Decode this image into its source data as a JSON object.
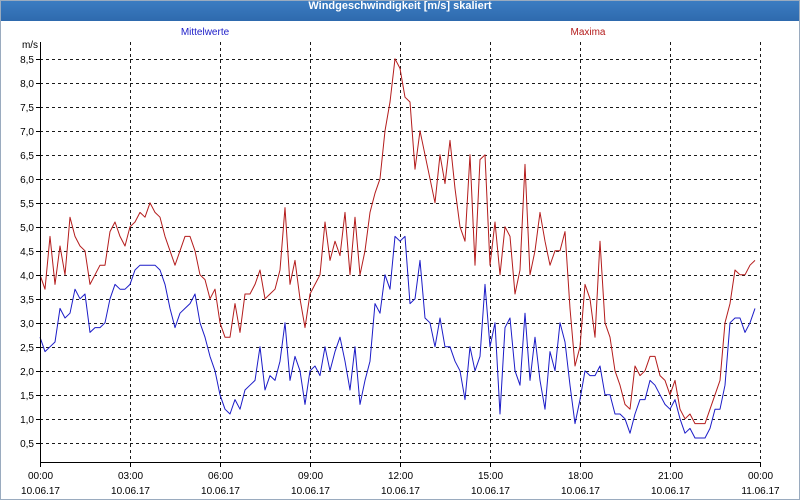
{
  "chart_data": {
    "type": "line",
    "title": "Windgeschwindigkeit [m/s] skaliert",
    "xlabel": "",
    "ylabel": "m/s",
    "xlim": [
      "10.06.17 00:00",
      "11.06.17 00:00"
    ],
    "ylim": [
      0.1,
      8.85
    ],
    "grid": true,
    "legend": "top",
    "y_ticks": [
      "0,5",
      "1,0",
      "1,5",
      "2,0",
      "2,5",
      "3,0",
      "3,5",
      "4,0",
      "4,5",
      "5,0",
      "5,5",
      "6,0",
      "6,5",
      "7,0",
      "7,5",
      "8,0",
      "8,5"
    ],
    "x_ticks": [
      {
        "time": "00:00",
        "date": "10.06.17"
      },
      {
        "time": "03:00",
        "date": "10.06.17"
      },
      {
        "time": "06:00",
        "date": "10.06.17"
      },
      {
        "time": "09:00",
        "date": "10.06.17"
      },
      {
        "time": "12:00",
        "date": "10.06.17"
      },
      {
        "time": "15:00",
        "date": "10.06.17"
      },
      {
        "time": "18:00",
        "date": "10.06.17"
      },
      {
        "time": "21:00",
        "date": "10.06.17"
      },
      {
        "time": "00:00",
        "date": "11.06.17"
      }
    ],
    "x": [
      "10.06.17 00:00",
      "10.06.17 00:10",
      "10.06.17 00:20",
      "10.06.17 00:30",
      "10.06.17 00:40",
      "10.06.17 00:50",
      "10.06.17 01:00",
      "10.06.17 01:10",
      "10.06.17 01:20",
      "10.06.17 01:30",
      "10.06.17 01:40",
      "10.06.17 01:50",
      "10.06.17 02:00",
      "10.06.17 02:10",
      "10.06.17 02:20",
      "10.06.17 02:30",
      "10.06.17 02:40",
      "10.06.17 02:50",
      "10.06.17 03:00",
      "10.06.17 03:10",
      "10.06.17 03:20",
      "10.06.17 03:30",
      "10.06.17 03:40",
      "10.06.17 03:50",
      "10.06.17 04:00",
      "10.06.17 04:10",
      "10.06.17 04:20",
      "10.06.17 04:30",
      "10.06.17 04:40",
      "10.06.17 04:50",
      "10.06.17 05:00",
      "10.06.17 05:10",
      "10.06.17 05:20",
      "10.06.17 05:30",
      "10.06.17 05:40",
      "10.06.17 05:50",
      "10.06.17 06:00",
      "10.06.17 06:10",
      "10.06.17 06:20",
      "10.06.17 06:30",
      "10.06.17 06:40",
      "10.06.17 06:50",
      "10.06.17 07:00",
      "10.06.17 07:10",
      "10.06.17 07:20",
      "10.06.17 07:30",
      "10.06.17 07:40",
      "10.06.17 07:50",
      "10.06.17 08:00",
      "10.06.17 08:10",
      "10.06.17 08:20",
      "10.06.17 08:30",
      "10.06.17 08:40",
      "10.06.17 08:50",
      "10.06.17 09:00",
      "10.06.17 09:10",
      "10.06.17 09:20",
      "10.06.17 09:30",
      "10.06.17 09:40",
      "10.06.17 09:50",
      "10.06.17 10:00",
      "10.06.17 10:10",
      "10.06.17 10:20",
      "10.06.17 10:30",
      "10.06.17 10:40",
      "10.06.17 10:50",
      "10.06.17 11:00",
      "10.06.17 11:10",
      "10.06.17 11:20",
      "10.06.17 11:30",
      "10.06.17 11:40",
      "10.06.17 11:50",
      "10.06.17 12:00",
      "10.06.17 12:10",
      "10.06.17 12:20",
      "10.06.17 12:30",
      "10.06.17 12:40",
      "10.06.17 12:50",
      "10.06.17 13:00",
      "10.06.17 13:10",
      "10.06.17 13:20",
      "10.06.17 13:30",
      "10.06.17 13:40",
      "10.06.17 13:50",
      "10.06.17 14:00",
      "10.06.17 14:10",
      "10.06.17 14:20",
      "10.06.17 14:30",
      "10.06.17 14:40",
      "10.06.17 14:50",
      "10.06.17 15:00",
      "10.06.17 15:10",
      "10.06.17 15:20",
      "10.06.17 15:30",
      "10.06.17 15:40",
      "10.06.17 15:50",
      "10.06.17 16:00",
      "10.06.17 16:10",
      "10.06.17 16:20",
      "10.06.17 16:30",
      "10.06.17 16:40",
      "10.06.17 16:50",
      "10.06.17 17:00",
      "10.06.17 17:10",
      "10.06.17 17:20",
      "10.06.17 17:30",
      "10.06.17 17:40",
      "10.06.17 17:50",
      "10.06.17 18:00",
      "10.06.17 18:10",
      "10.06.17 18:20",
      "10.06.17 18:30",
      "10.06.17 18:40",
      "10.06.17 18:50",
      "10.06.17 19:00",
      "10.06.17 19:10",
      "10.06.17 19:20",
      "10.06.17 19:30",
      "10.06.17 19:40",
      "10.06.17 19:50",
      "10.06.17 20:00",
      "10.06.17 20:10",
      "10.06.17 20:20",
      "10.06.17 20:30",
      "10.06.17 20:40",
      "10.06.17 20:50",
      "10.06.17 21:00",
      "10.06.17 21:10",
      "10.06.17 21:20",
      "10.06.17 21:30",
      "10.06.17 21:40",
      "10.06.17 21:50",
      "10.06.17 22:00",
      "10.06.17 22:10",
      "10.06.17 22:20",
      "10.06.17 22:30",
      "10.06.17 22:40",
      "10.06.17 22:50",
      "10.06.17 23:00",
      "10.06.17 23:10",
      "10.06.17 23:20",
      "10.06.17 23:30",
      "10.06.17 23:40",
      "10.06.17 23:50"
    ],
    "series": [
      {
        "name": "Mittelwerte",
        "color": "#1c1cc8",
        "values": [
          2.7,
          2.4,
          2.5,
          2.6,
          3.3,
          3.1,
          3.2,
          3.7,
          3.5,
          3.6,
          2.8,
          2.9,
          2.9,
          3.0,
          3.5,
          3.8,
          3.7,
          3.7,
          3.8,
          4.1,
          4.2,
          4.2,
          4.2,
          4.2,
          4.1,
          3.8,
          3.3,
          2.9,
          3.2,
          3.3,
          3.4,
          3.6,
          3.0,
          2.7,
          2.3,
          2.0,
          1.5,
          1.2,
          1.1,
          1.4,
          1.2,
          1.6,
          1.7,
          1.8,
          2.5,
          1.6,
          1.9,
          1.8,
          2.2,
          3.0,
          1.8,
          2.3,
          2.0,
          1.3,
          2.0,
          2.1,
          1.9,
          2.5,
          2.0,
          2.4,
          2.7,
          2.2,
          1.6,
          2.5,
          1.3,
          1.8,
          2.2,
          3.4,
          3.2,
          4.0,
          3.7,
          4.8,
          4.7,
          4.8,
          3.4,
          3.5,
          4.3,
          3.1,
          3.0,
          2.5,
          3.1,
          2.5,
          2.5,
          2.2,
          2.0,
          1.4,
          2.5,
          2.0,
          2.3,
          3.8,
          2.5,
          3.0,
          1.1,
          2.9,
          3.1,
          2.0,
          1.7,
          3.2,
          1.8,
          2.7,
          1.8,
          1.2,
          2.4,
          2.0,
          3.0,
          2.6,
          1.7,
          0.9,
          1.4,
          2.0,
          1.9,
          1.9,
          2.1,
          1.5,
          1.5,
          1.1,
          1.1,
          1.0,
          0.7,
          1.1,
          1.4,
          1.4,
          1.8,
          1.7,
          1.5,
          1.3,
          1.2,
          1.4,
          1.0,
          0.7,
          0.8,
          0.6,
          0.6,
          0.6,
          0.8,
          1.2,
          1.2,
          1.7,
          3.0,
          3.1,
          3.1,
          2.8,
          3.0,
          3.3
        ]
      },
      {
        "name": "Maxima",
        "color": "#b41c1c",
        "values": [
          4.0,
          3.7,
          4.8,
          3.8,
          4.6,
          4.0,
          5.2,
          4.8,
          4.6,
          4.5,
          3.8,
          4.0,
          4.2,
          4.2,
          4.9,
          5.1,
          4.8,
          4.6,
          5.0,
          5.1,
          5.3,
          5.2,
          5.5,
          5.3,
          5.2,
          4.8,
          4.5,
          4.2,
          4.5,
          4.8,
          4.8,
          4.5,
          4.0,
          3.9,
          3.5,
          3.7,
          3.0,
          2.7,
          2.7,
          3.4,
          2.8,
          3.6,
          3.6,
          3.8,
          4.1,
          3.5,
          3.6,
          3.7,
          4.1,
          5.4,
          3.8,
          4.3,
          3.5,
          2.9,
          3.6,
          3.8,
          4.0,
          5.1,
          4.3,
          4.7,
          4.4,
          5.3,
          4.0,
          5.2,
          4.0,
          4.5,
          5.3,
          5.7,
          6.0,
          7.0,
          7.6,
          8.5,
          8.3,
          7.7,
          7.6,
          6.2,
          7.0,
          6.5,
          6.0,
          5.5,
          6.5,
          5.9,
          6.8,
          5.8,
          5.0,
          4.7,
          6.5,
          4.2,
          6.4,
          6.5,
          4.2,
          5.1,
          4.0,
          5.0,
          4.8,
          3.6,
          4.1,
          6.3,
          4.0,
          4.5,
          5.3,
          4.7,
          4.2,
          4.5,
          4.5,
          4.9,
          3.3,
          2.1,
          2.5,
          3.8,
          3.5,
          2.7,
          4.7,
          3.0,
          2.7,
          2.0,
          1.7,
          1.3,
          1.2,
          2.1,
          1.9,
          2.0,
          2.3,
          2.3,
          1.9,
          1.8,
          1.5,
          1.8,
          1.2,
          1.0,
          1.1,
          0.9,
          0.9,
          0.9,
          1.2,
          1.5,
          1.8,
          3.0,
          3.4,
          4.1,
          4.0,
          4.0,
          4.2,
          4.3
        ]
      }
    ]
  },
  "window": {
    "title_bar_color": "#2e6aae"
  }
}
